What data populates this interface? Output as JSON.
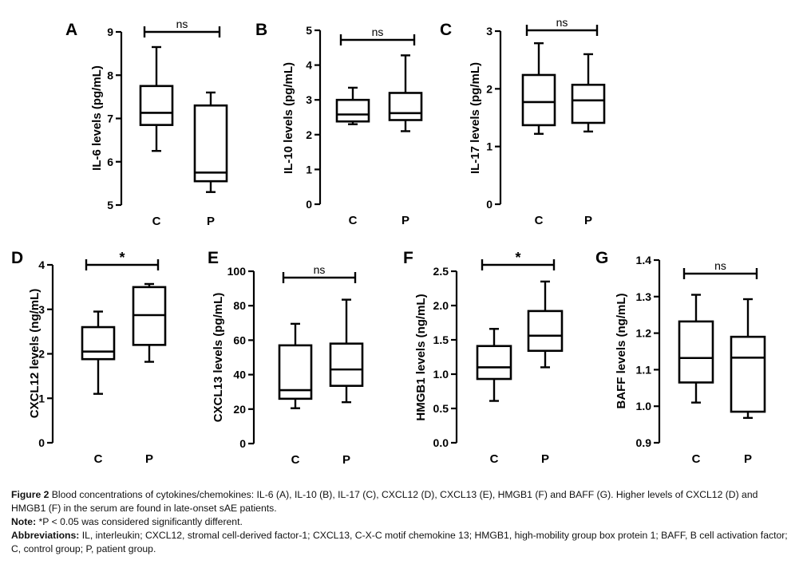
{
  "figure": {
    "panels": [
      "A",
      "B",
      "C",
      "D",
      "E",
      "F",
      "G"
    ]
  },
  "chart_data": [
    {
      "panel": "A",
      "type": "box",
      "ylabel": "IL-6 levels (pg/mL)",
      "ylim": [
        5,
        9
      ],
      "yticks": [
        5,
        6,
        7,
        8,
        9
      ],
      "tick_decimals": 0,
      "categories": [
        "C",
        "P"
      ],
      "boxes": [
        {
          "group": "C",
          "min": 6.25,
          "q1": 6.85,
          "median": 7.13,
          "q3": 7.75,
          "max": 8.65
        },
        {
          "group": "P",
          "min": 5.3,
          "q1": 5.55,
          "median": 5.75,
          "q3": 7.3,
          "max": 7.6
        }
      ],
      "significance": "ns"
    },
    {
      "panel": "B",
      "type": "box",
      "ylabel": "IL-10 levels (pg/mL)",
      "ylim": [
        0,
        5
      ],
      "yticks": [
        0,
        1,
        2,
        3,
        4,
        5
      ],
      "tick_decimals": 0,
      "categories": [
        "C",
        "P"
      ],
      "boxes": [
        {
          "group": "C",
          "min": 2.3,
          "q1": 2.38,
          "median": 2.58,
          "q3": 3.0,
          "max": 3.35
        },
        {
          "group": "P",
          "min": 2.1,
          "q1": 2.42,
          "median": 2.62,
          "q3": 3.2,
          "max": 4.28
        }
      ],
      "significance": "ns"
    },
    {
      "panel": "C",
      "type": "box",
      "ylabel": "IL-17 levels (pg/mL)",
      "ylim": [
        0,
        3
      ],
      "yticks": [
        0,
        1,
        2,
        3
      ],
      "tick_decimals": 0,
      "categories": [
        "C",
        "P"
      ],
      "boxes": [
        {
          "group": "C",
          "min": 1.22,
          "q1": 1.37,
          "median": 1.77,
          "q3": 2.24,
          "max": 2.79
        },
        {
          "group": "P",
          "min": 1.26,
          "q1": 1.41,
          "median": 1.8,
          "q3": 2.07,
          "max": 2.6
        }
      ],
      "significance": "ns"
    },
    {
      "panel": "D",
      "type": "box",
      "ylabel": "CXCL12 levels (ng/mL)",
      "ylim": [
        0,
        4
      ],
      "yticks": [
        0,
        1,
        2,
        3,
        4
      ],
      "tick_decimals": 0,
      "categories": [
        "C",
        "P"
      ],
      "boxes": [
        {
          "group": "C",
          "min": 1.1,
          "q1": 1.88,
          "median": 2.05,
          "q3": 2.6,
          "max": 2.95
        },
        {
          "group": "P",
          "min": 1.82,
          "q1": 2.2,
          "median": 2.87,
          "q3": 3.5,
          "max": 3.57
        }
      ],
      "significance": "*"
    },
    {
      "panel": "E",
      "type": "box",
      "ylabel": "CXCL13 levels (pg/mL)",
      "ylim": [
        0,
        100
      ],
      "yticks": [
        0,
        20,
        40,
        60,
        80,
        100
      ],
      "tick_decimals": 0,
      "categories": [
        "C",
        "P"
      ],
      "boxes": [
        {
          "group": "C",
          "min": 20.5,
          "q1": 26,
          "median": 31,
          "q3": 57,
          "max": 69.5
        },
        {
          "group": "P",
          "min": 24,
          "q1": 33.5,
          "median": 43,
          "q3": 58,
          "max": 83.5
        }
      ],
      "significance": "ns"
    },
    {
      "panel": "F",
      "type": "box",
      "ylabel": "HMGB1 levels (ng/mL)",
      "ylim": [
        0,
        2.5
      ],
      "yticks": [
        0,
        0.5,
        1,
        1.5,
        2,
        2.5
      ],
      "tick_decimals": 1,
      "categories": [
        "C",
        "P"
      ],
      "boxes": [
        {
          "group": "C",
          "min": 0.61,
          "q1": 0.93,
          "median": 1.1,
          "q3": 1.41,
          "max": 1.66
        },
        {
          "group": "P",
          "min": 1.1,
          "q1": 1.34,
          "median": 1.56,
          "q3": 1.92,
          "max": 2.35
        }
      ],
      "significance": "*"
    },
    {
      "panel": "G",
      "type": "box",
      "ylabel": "BAFF levels (ng/mL)",
      "ylim": [
        0.9,
        1.4
      ],
      "yticks": [
        0.9,
        1.0,
        1.1,
        1.2,
        1.3,
        1.4
      ],
      "tick_decimals": 1,
      "categories": [
        "C",
        "P"
      ],
      "boxes": [
        {
          "group": "C",
          "min": 1.01,
          "q1": 1.065,
          "median": 1.132,
          "q3": 1.232,
          "max": 1.305
        },
        {
          "group": "P",
          "min": 0.968,
          "q1": 0.985,
          "median": 1.133,
          "q3": 1.19,
          "max": 1.293
        }
      ],
      "significance": "ns"
    }
  ],
  "caption": {
    "line1_prefix": "Figure 2",
    "line1_text": "Blood concentrations of cytokines/chemokines: IL-6 (A), IL-10 (B), IL-17 (C), CXCL12 (D), CXCL13 (E), HMGB1 (F) and BAFF (G). Higher levels of CXCL12 (D) and HMGB1 (F) in the serum are found in late-onset sAE patients.",
    "note_label": "Note:",
    "note_text": "*P < 0.05 was considered significantly different.",
    "abbr_label": "Abbreviations:",
    "abbr_text": "IL, interleukin; CXCL12, stromal cell-derived factor-1; CXCL13, C-X-C motif chemokine 13; HMGB1, high-mobility group box protein 1; BAFF, B cell activation factor; C, control group; P, patient group."
  }
}
